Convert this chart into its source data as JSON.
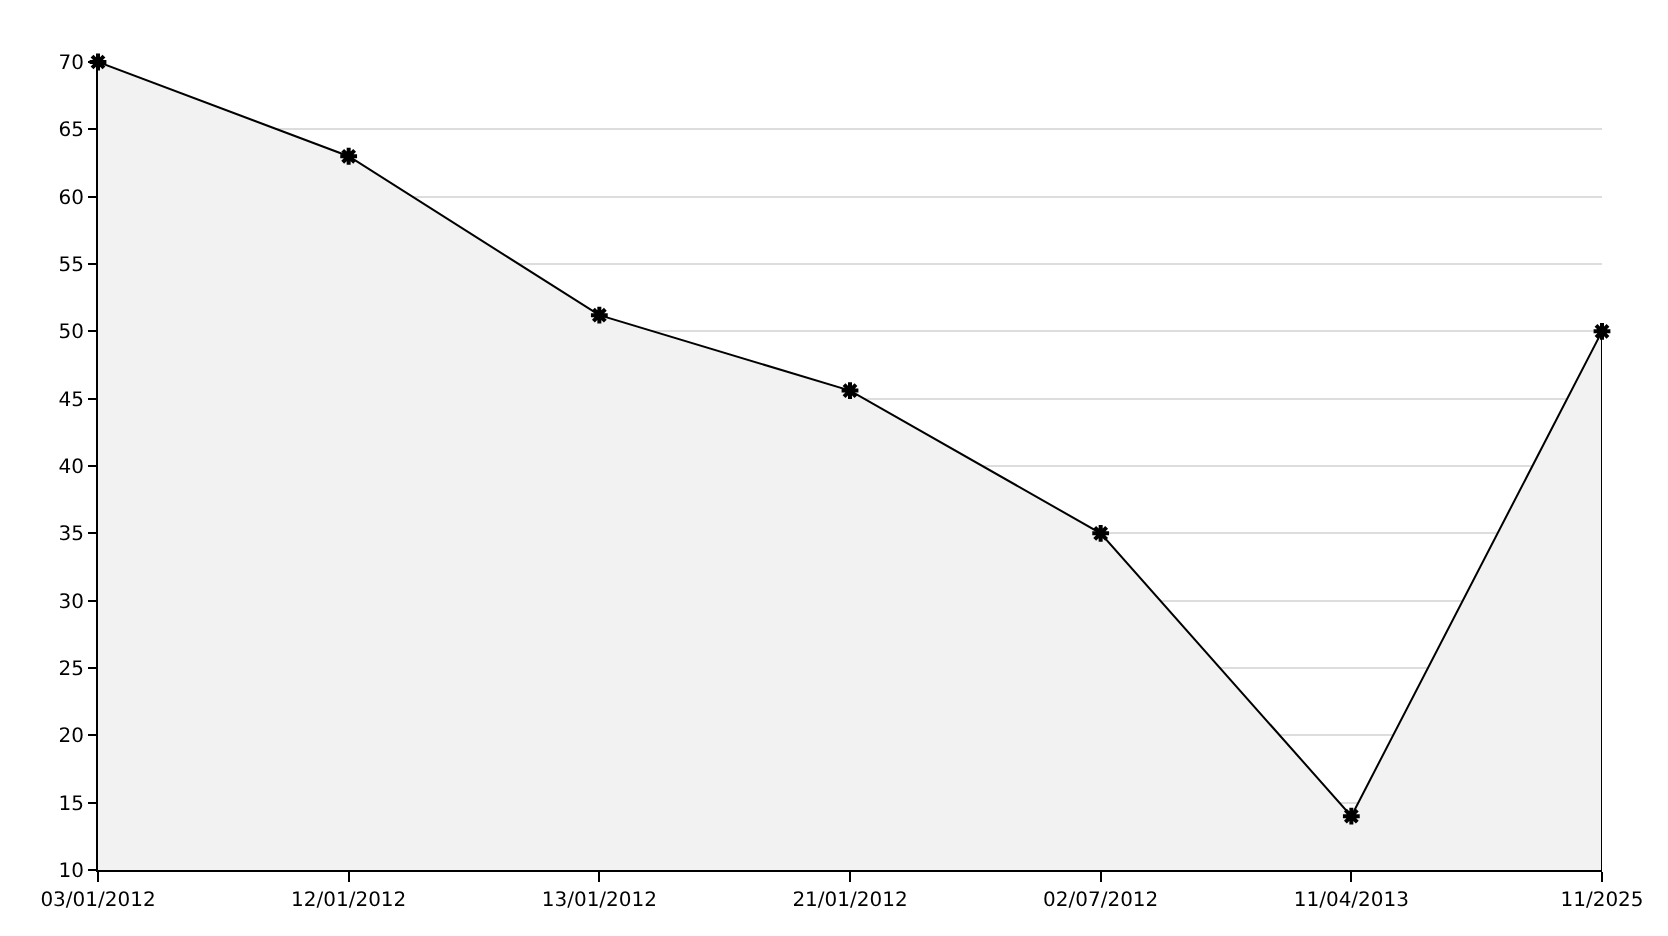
{
  "chart_data": {
    "type": "area",
    "categories": [
      "03/01/2012",
      "12/01/2012",
      "13/01/2012",
      "21/01/2012",
      "02/07/2012",
      "11/04/2013",
      "11/2025"
    ],
    "series": [
      {
        "color": "#000000",
        "values": [
          70,
          63,
          51.2,
          45.6,
          35,
          14,
          50
        ]
      }
    ],
    "ylim": [
      10,
      70
    ],
    "yticks": [
      10,
      15,
      20,
      25,
      30,
      35,
      40,
      45,
      50,
      55,
      60,
      65,
      70
    ],
    "grid": "y",
    "marker": "cross",
    "line_style": "solid",
    "legend": false
  }
}
